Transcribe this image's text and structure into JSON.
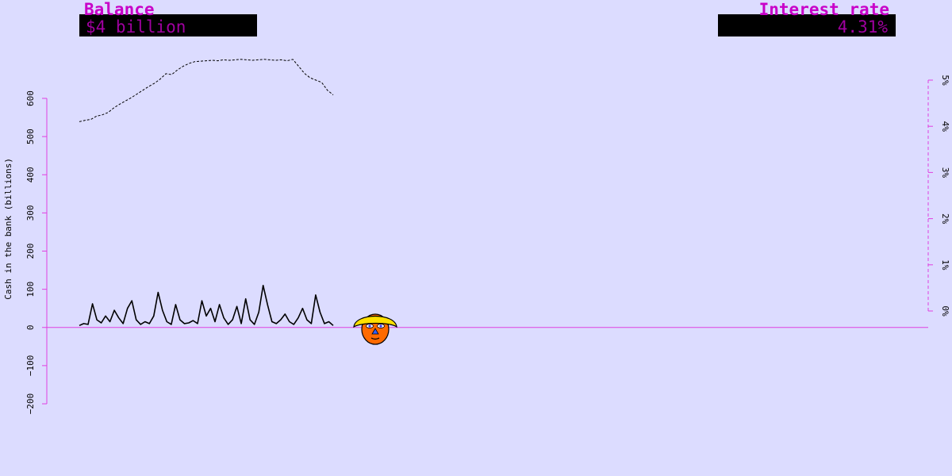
{
  "chart_data": {
    "type": "line",
    "ylabel": "Cash in the bank (billions)",
    "y_ticks": [
      "−200",
      "−100",
      "0",
      "100",
      "200",
      "300",
      "400",
      "500",
      "600"
    ],
    "y_tick_values": [
      -200,
      -100,
      0,
      100,
      200,
      300,
      400,
      500,
      600
    ],
    "ylim": [
      -200,
      600
    ],
    "y2_ticks": [
      "0%",
      "1%",
      "2%",
      "3%",
      "4%",
      "5%"
    ],
    "y2_tick_values": [
      0,
      1,
      2,
      3,
      4,
      5
    ],
    "y2lim": [
      0,
      5
    ],
    "series": [
      {
        "style": "dashed",
        "axis": "right",
        "unit": "%",
        "values": [
          4.1,
          4.13,
          4.15,
          4.22,
          4.25,
          4.3,
          4.4,
          4.48,
          4.55,
          4.62,
          4.7,
          4.78,
          4.86,
          4.93,
          5.02,
          5.14,
          5.12,
          5.22,
          5.3,
          5.36,
          5.4,
          5.41,
          5.42,
          5.43,
          5.42,
          5.44,
          5.43,
          5.44,
          5.45,
          5.44,
          5.43,
          5.44,
          5.45,
          5.44,
          5.43,
          5.44,
          5.42,
          5.45,
          5.3,
          5.15,
          5.05,
          5.0,
          4.95,
          4.78,
          4.68
        ]
      },
      {
        "style": "solid",
        "axis": "left",
        "unit": "billions",
        "values": [
          5,
          10,
          8,
          62,
          20,
          12,
          30,
          15,
          45,
          25,
          10,
          50,
          70,
          20,
          8,
          15,
          10,
          30,
          92,
          45,
          15,
          8,
          60,
          20,
          10,
          12,
          18,
          10,
          70,
          30,
          50,
          15,
          60,
          25,
          8,
          20,
          55,
          10,
          75,
          20,
          8,
          40,
          110,
          60,
          15,
          10,
          20,
          35,
          15,
          8,
          25,
          50,
          20,
          10,
          85,
          40,
          10,
          15,
          5
        ]
      }
    ],
    "zero_line": true,
    "grid": false
  },
  "panels": {
    "balance": {
      "title": "Balance",
      "value": "$4 billion"
    },
    "interest_rate": {
      "title": "Interest rate",
      "value": "4.31%"
    }
  },
  "colors": {
    "background": "#dcdcff",
    "axis": "#e040e0",
    "panel_title": "#c800c8",
    "panel_value": "#a000a0",
    "panel_box": "#000000"
  },
  "icons": {
    "avatar": "player-face-icon"
  }
}
